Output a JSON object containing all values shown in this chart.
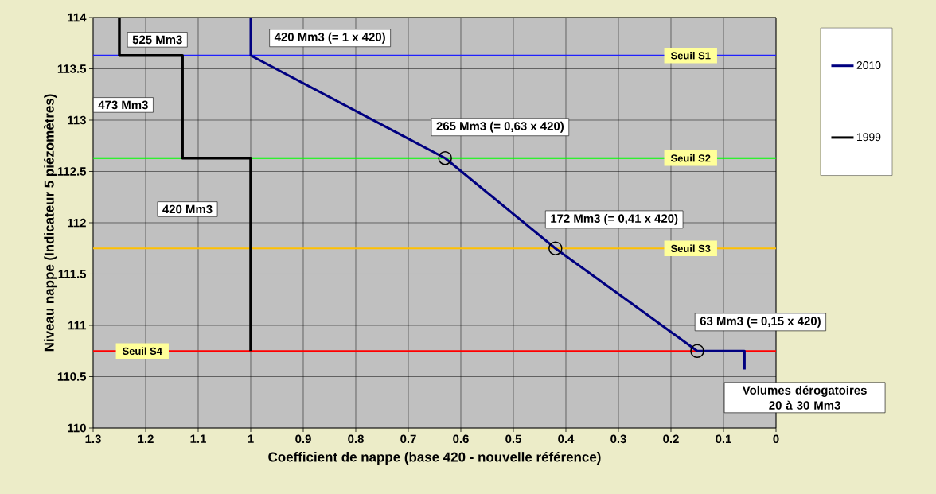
{
  "chart_data": {
    "type": "line",
    "xlabel": "Coefficient de nappe (base 420 - nouvelle référence)",
    "ylabel": "Niveau nappe (Indicateur 5 piézomètres)",
    "xlim": [
      1.3,
      0
    ],
    "ylim": [
      110,
      114
    ],
    "xticks": [
      1.3,
      1.2,
      1.1,
      1,
      0.9,
      0.8,
      0.7,
      0.6,
      0.5,
      0.4,
      0.3,
      0.2,
      0.1,
      0
    ],
    "yticks": [
      110,
      110.5,
      111,
      111.5,
      112,
      112.5,
      113,
      113.5,
      114
    ],
    "grid": true,
    "legend": "right",
    "series": [
      {
        "name": "2010",
        "color": "#000080",
        "x": [
          1,
          1,
          0.63,
          0.42,
          0.15,
          0.06,
          0.06
        ],
        "values": [
          114,
          113.63,
          112.63,
          111.75,
          110.75,
          110.75,
          110.57
        ]
      },
      {
        "name": "1999",
        "color": "#000000",
        "x": [
          1.25,
          1.25,
          1.13,
          1.13,
          1,
          1
        ],
        "values": [
          114,
          113.63,
          113.63,
          112.63,
          112.63,
          110.75
        ]
      },
      {
        "type": "scatter",
        "marker": "circle",
        "color": "#000000",
        "x": [
          0.63,
          0.42,
          0.15
        ],
        "values": [
          112.63,
          111.75,
          110.75
        ]
      }
    ],
    "ref_lines": [
      {
        "axis": "y",
        "value": 113.63,
        "label": "Seuil S1",
        "color": "#2020ff"
      },
      {
        "axis": "y",
        "value": 112.63,
        "label": "Seuil S2",
        "color": "#00ff00"
      },
      {
        "axis": "y",
        "value": 111.75,
        "label": "Seuil S3",
        "color": "#ffc000"
      },
      {
        "axis": "y",
        "value": 110.75,
        "label": "Seuil S4",
        "color": "#ff0000"
      }
    ],
    "annotations": [
      "525 Mm3",
      "473 Mm3",
      "420 Mm3",
      "420 Mm3 (= 1 x 420)",
      "265 Mm3 (= 0,63 x 420)",
      "172 Mm3 (= 0,41 x 420)",
      "63 Mm3 (= 0,15 x 420)",
      "Volumes dérogatoires 20 à 30 Mm3"
    ]
  }
}
